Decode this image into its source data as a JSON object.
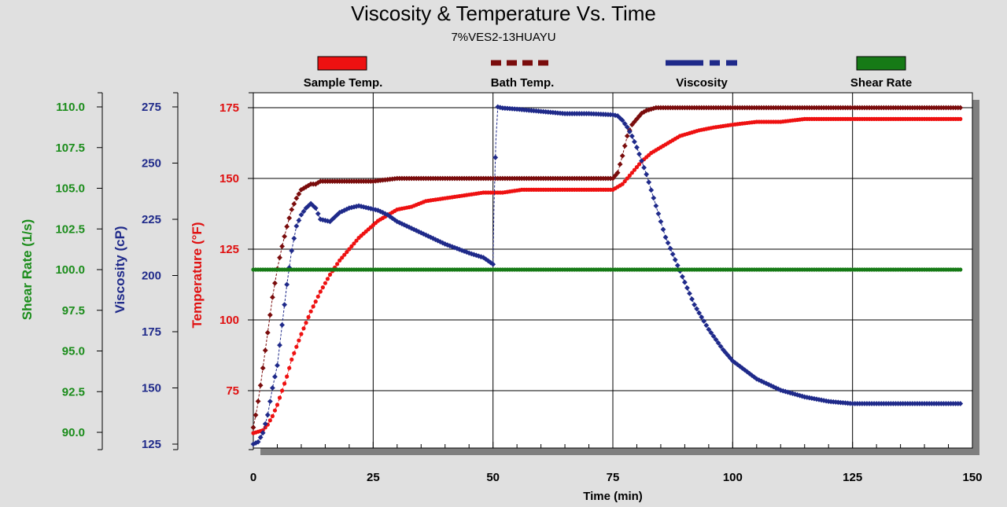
{
  "chart_data": {
    "type": "line",
    "title": "Viscosity & Temperature Vs. Time",
    "subtitle": "7%VES2-13HUAYU",
    "xlabel": "Time (min)",
    "xlim": [
      0,
      150
    ],
    "xticks": [
      "0",
      "25",
      "50",
      "75",
      "100",
      "125",
      "150"
    ],
    "grid": true,
    "legend_placement": "top",
    "axes": {
      "shear": {
        "label": "Shear Rate (1/s)",
        "color": "#1a8c1a",
        "lim": [
          90,
          110
        ],
        "ticks": [
          "110.0",
          "107.5",
          "105.0",
          "102.5",
          "100.0",
          "97.5",
          "95.0",
          "92.5",
          "90.0"
        ]
      },
      "visc": {
        "label": "Viscosity (cP)",
        "color": "#1f2a8a",
        "lim": [
          125,
          275
        ],
        "ticks": [
          "275",
          "250",
          "225",
          "200",
          "175",
          "150",
          "125"
        ]
      },
      "temp": {
        "label": "Temperature (°F)",
        "color": "#e01010",
        "lim": [
          60,
          180
        ],
        "ticks": [
          "175",
          "150",
          "125",
          "100",
          "75"
        ]
      }
    },
    "series": [
      {
        "name": "Sample Temp.",
        "axis": "temp",
        "color": "#ee1111",
        "marker": "circle",
        "x": [
          0,
          2,
          3,
          4,
          5,
          6,
          7,
          8,
          10,
          12,
          14,
          16,
          18,
          20,
          22,
          24,
          26,
          28,
          30,
          33,
          36,
          40,
          44,
          48,
          52,
          56,
          60,
          65,
          70,
          75,
          77,
          79,
          81,
          83,
          85,
          87,
          89,
          91,
          93,
          96,
          100,
          105,
          110,
          115,
          120,
          125,
          130,
          140,
          147.5
        ],
        "y": [
          60,
          61,
          63,
          66,
          70,
          75,
          80,
          86,
          95,
          103,
          110,
          116,
          121,
          125,
          129,
          132,
          135,
          137,
          139,
          140,
          142,
          143,
          144,
          145,
          145,
          146,
          146,
          146,
          146,
          146,
          148,
          152,
          156,
          159,
          161,
          163,
          165,
          166,
          167,
          168,
          169,
          170,
          170,
          171,
          171,
          171,
          171,
          171,
          171
        ]
      },
      {
        "name": "Bath Temp.",
        "axis": "temp",
        "color": "#7a0c0c",
        "marker": "diamond",
        "x": [
          0,
          0.8,
          1.6,
          2.4,
          3.2,
          4,
          5,
          6,
          7,
          8,
          9,
          10,
          11,
          12,
          13,
          14,
          16,
          20,
          25,
          30,
          35,
          40,
          50,
          60,
          70,
          75,
          76,
          77,
          78,
          79,
          80,
          81,
          82,
          83,
          84,
          85,
          90,
          100,
          110,
          120,
          130,
          140,
          147.5
        ],
        "y": [
          62,
          69,
          78,
          88,
          98,
          108,
          118,
          126,
          133,
          139,
          143,
          146,
          147,
          148,
          148,
          149,
          149,
          149,
          149,
          150,
          150,
          150,
          150,
          150,
          150,
          150,
          152,
          158,
          165,
          169,
          171,
          173,
          174,
          174.5,
          175,
          175,
          175,
          175,
          175,
          175,
          175,
          175,
          175
        ]
      },
      {
        "name": "Viscosity",
        "axis": "visc",
        "color": "#1f2a8a",
        "marker": "diamond",
        "x": [
          0,
          1,
          2,
          3,
          4,
          5,
          6,
          7,
          8,
          9,
          10,
          11,
          12,
          13,
          14,
          16,
          18,
          20,
          22,
          24,
          26,
          28,
          30,
          35,
          40,
          45,
          48,
          50,
          50.2,
          50.6,
          51,
          52,
          55,
          60,
          65,
          70,
          75,
          76,
          77,
          78,
          79,
          80,
          81,
          82,
          83,
          84,
          85,
          86,
          88,
          90,
          92,
          95,
          98,
          100,
          105,
          110,
          115,
          120,
          125,
          130,
          135,
          140,
          147.5
        ],
        "y": [
          125,
          126,
          130,
          138,
          150,
          160,
          178,
          196,
          211,
          222,
          227,
          230,
          232,
          230,
          225,
          224,
          228,
          230,
          231,
          230,
          229,
          227,
          224,
          219,
          214,
          210,
          208,
          205,
          230,
          260,
          275,
          274.5,
          274,
          273,
          272,
          272,
          271.5,
          271,
          269,
          266,
          262,
          257,
          251,
          245,
          238,
          231,
          224,
          217,
          207,
          197,
          187,
          176,
          167,
          162,
          154,
          149,
          146,
          144,
          143,
          143,
          143,
          143,
          143
        ]
      },
      {
        "name": "Shear Rate",
        "axis": "shear",
        "color": "#167a16",
        "marker": "circle",
        "x": [
          0,
          147.5
        ],
        "y": [
          100,
          100
        ]
      }
    ]
  }
}
